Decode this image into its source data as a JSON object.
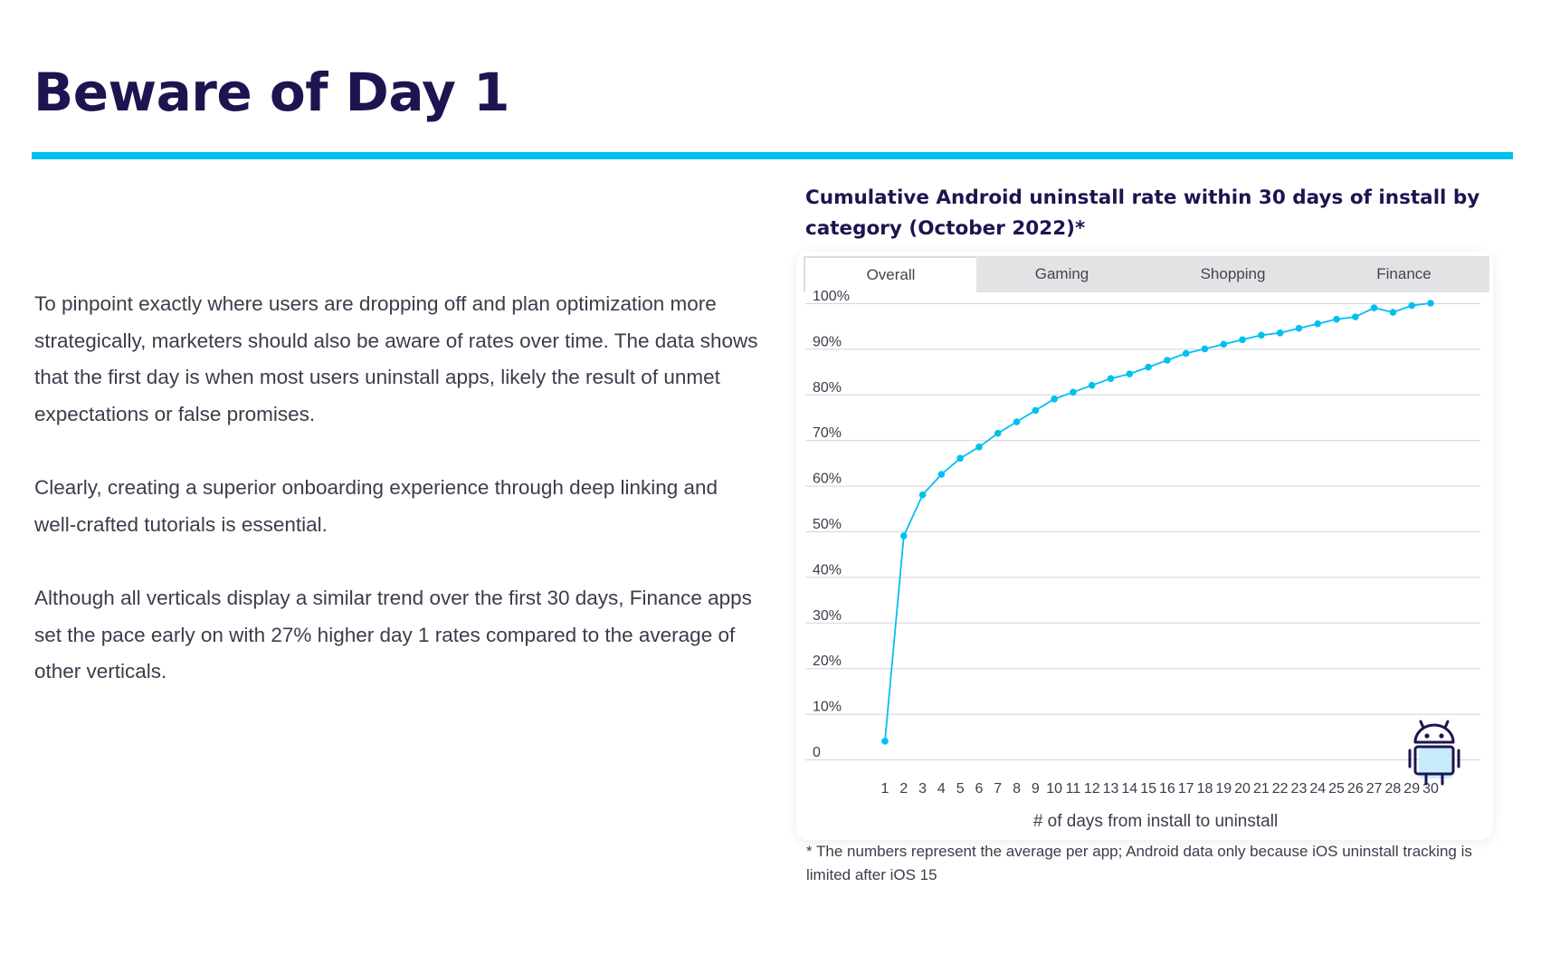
{
  "page": {
    "title": "Beware of Day 1",
    "paragraphs": [
      "To pinpoint exactly where users are dropping off and plan optimization more strategically, marketers should also be aware of rates over time. The data shows that the first day is when most users uninstall apps, likely the result of unmet expectations or false promises.",
      "Clearly, creating a superior onboarding experience through deep linking and well-crafted tutorials is essential.",
      "Although all verticals display a similar trend over the first 30 days, Finance apps set the pace early on with 27% higher day 1 rates compared to the average of other verticals."
    ],
    "footnote": "* The numbers represent the average per app; Android data only because iOS uninstall tracking is limited after iOS 15"
  },
  "colors": {
    "title": "#1e1450",
    "accent": "#00c0f0",
    "line": "#00c0f0",
    "icon": "#1e1450",
    "icon_fill": "#c8ecfb"
  },
  "tabs": [
    {
      "label": "Overall",
      "active": true
    },
    {
      "label": "Gaming",
      "active": false
    },
    {
      "label": "Shopping",
      "active": false
    },
    {
      "label": "Finance",
      "active": false
    }
  ],
  "icons": {
    "platform": "android-icon"
  },
  "chart_data": {
    "type": "line",
    "title": "Cumulative Android uninstall rate within 30 days of install by category (October 2022)*",
    "xlabel": "# of days from install to uninstall",
    "ylabel": "",
    "x": [
      1,
      2,
      3,
      4,
      5,
      6,
      7,
      8,
      9,
      10,
      11,
      12,
      13,
      14,
      15,
      16,
      17,
      18,
      19,
      20,
      21,
      22,
      23,
      24,
      25,
      26,
      27,
      28,
      29,
      30
    ],
    "series": [
      {
        "values": [
          4,
          49,
          58,
          62.5,
          66,
          68.5,
          71.5,
          74,
          76.5,
          79,
          80.5,
          82,
          83.5,
          84.5,
          86,
          87.5,
          89,
          90,
          91,
          92,
          93,
          93.5,
          94.5,
          95.5,
          96.5,
          97,
          99,
          98,
          99.5,
          100
        ]
      }
    ],
    "ylim": [
      0,
      100
    ],
    "yticks": [
      0,
      10,
      20,
      30,
      40,
      50,
      60,
      70,
      80,
      90,
      100
    ],
    "ytick_labels": [
      "0",
      "10%",
      "20%",
      "30%",
      "40%",
      "50%",
      "60%",
      "70%",
      "80%",
      "90%",
      "100%"
    ],
    "xtick_labels": [
      "1",
      "2",
      "3",
      "4",
      "5",
      "6",
      "7",
      "8",
      "9",
      "10",
      "11",
      "12",
      "13",
      "14",
      "15",
      "16",
      "17",
      "18",
      "19",
      "20",
      "21",
      "22",
      "23",
      "24",
      "25",
      "26",
      "27",
      "28",
      "29",
      "30"
    ],
    "grid": true,
    "legend": "none",
    "markers": true
  }
}
